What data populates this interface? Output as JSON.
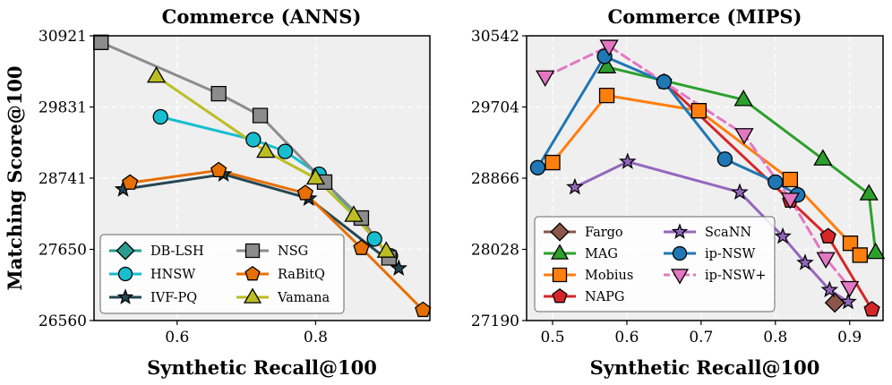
{
  "chart_data": [
    {
      "type": "line",
      "title": "Commerce (ANNS)",
      "xlabel": "Synthetic Recall@100",
      "ylabel": "Matching Score@100",
      "xlim": [
        0.48,
        0.965
      ],
      "ylim": [
        26560,
        30921
      ],
      "xticks": [
        0.6,
        0.8
      ],
      "xtick_labels": [
        "0.6",
        "0.8"
      ],
      "yticks": [
        26560,
        27650,
        28741,
        29831,
        30921
      ],
      "ytick_labels": [
        "26560",
        "27650",
        "28741",
        "29831",
        "30921"
      ],
      "grid": true,
      "legend_position": "bottom-left",
      "legend_columns": 2,
      "series": [
        {
          "name": "DB-LSH",
          "color": "#2a9d8f",
          "marker": "diamond",
          "dashed": false,
          "x": [],
          "y": []
        },
        {
          "name": "HNSW",
          "color": "#17becf",
          "marker": "circle",
          "dashed": false,
          "x": [
            0.576,
            0.71,
            0.756,
            0.805,
            0.885,
            0.908
          ],
          "y": [
            29680,
            29330,
            29150,
            28800,
            27810,
            27550
          ]
        },
        {
          "name": "IVF-PQ",
          "color": "#264653",
          "marker": "star",
          "dashed": false,
          "x": [
            0.522,
            0.667,
            0.79,
            0.92
          ],
          "y": [
            28570,
            28800,
            28430,
            27360
          ]
        },
        {
          "name": "NSG",
          "color": "#8c8c8c",
          "marker": "square",
          "dashed": false,
          "x": [
            0.49,
            0.66,
            0.72,
            0.813,
            0.866,
            0.906
          ],
          "y": [
            30821,
            30035,
            29700,
            28680,
            28130,
            27520
          ]
        },
        {
          "name": "RaBitQ",
          "color": "#e76f00",
          "marker": "pentagon",
          "dashed": false,
          "x": [
            0.532,
            0.66,
            0.785,
            0.866,
            0.955
          ],
          "y": [
            28670,
            28860,
            28510,
            27670,
            26720
          ]
        },
        {
          "name": "Vamana",
          "color": "#bcbd22",
          "marker": "triangle",
          "dashed": false,
          "x": [
            0.57,
            0.728,
            0.8,
            0.855,
            0.902
          ],
          "y": [
            30300,
            29150,
            28740,
            28170,
            27620
          ]
        }
      ]
    },
    {
      "type": "line",
      "title": "Commerce (MIPS)",
      "xlabel": "Synthetic Recall@100",
      "ylabel": "",
      "xlim": [
        0.465,
        0.945
      ],
      "ylim": [
        27190,
        30542
      ],
      "xticks": [
        0.5,
        0.6,
        0.7,
        0.8,
        0.9
      ],
      "xtick_labels": [
        "0.5",
        "0.6",
        "0.7",
        "0.8",
        "0.9"
      ],
      "yticks": [
        27190,
        28028,
        28866,
        29704,
        30542
      ],
      "ytick_labels": [
        "27190",
        "28028",
        "28866",
        "29704",
        "30542"
      ],
      "grid": true,
      "legend_position": "bottom-left",
      "legend_columns": 2,
      "series": [
        {
          "name": "Fargo",
          "color": "#8c564b",
          "marker": "diamond",
          "dashed": false,
          "x": [
            0.88
          ],
          "y": [
            27400
          ]
        },
        {
          "name": "MAG",
          "color": "#2ca02c",
          "marker": "triangle",
          "dashed": false,
          "x": [
            0.573,
            0.757,
            0.864,
            0.926,
            0.935
          ],
          "y": [
            30175,
            29790,
            29090,
            28680,
            27990
          ]
        },
        {
          "name": "Mobius",
          "color": "#ff7f0e",
          "marker": "square",
          "dashed": false,
          "x": [
            0.5,
            0.573,
            0.697,
            0.82,
            0.901,
            0.914
          ],
          "y": [
            29050,
            29840,
            29660,
            28850,
            28100,
            27960
          ]
        },
        {
          "name": "NAPG",
          "color": "#d62728",
          "marker": "pentagon",
          "dashed": false,
          "x": [
            0.65,
            0.82,
            0.871,
            0.93
          ],
          "y": [
            30000,
            28600,
            28180,
            27320
          ]
        },
        {
          "name": "ScaNN",
          "color": "#9467bd",
          "marker": "star",
          "dashed": false,
          "x": [
            0.53,
            0.601,
            0.752,
            0.81,
            0.84,
            0.873,
            0.898
          ],
          "y": [
            28760,
            29060,
            28700,
            28180,
            27870,
            27550,
            27410
          ]
        },
        {
          "name": "ip-NSW",
          "color": "#1f77b4",
          "marker": "circle",
          "dashed": false,
          "x": [
            0.48,
            0.57,
            0.65,
            0.732,
            0.8,
            0.83
          ],
          "y": [
            28990,
            30300,
            30000,
            29090,
            28820,
            28670
          ]
        },
        {
          "name": "ip-NSW+",
          "color": "#e377c2",
          "marker": "triangle-down",
          "dashed": true,
          "x": [
            0.49,
            0.576,
            0.758,
            0.82,
            0.868,
            0.9
          ],
          "y": [
            30060,
            30420,
            29380,
            28620,
            27920,
            27580
          ]
        }
      ]
    }
  ]
}
